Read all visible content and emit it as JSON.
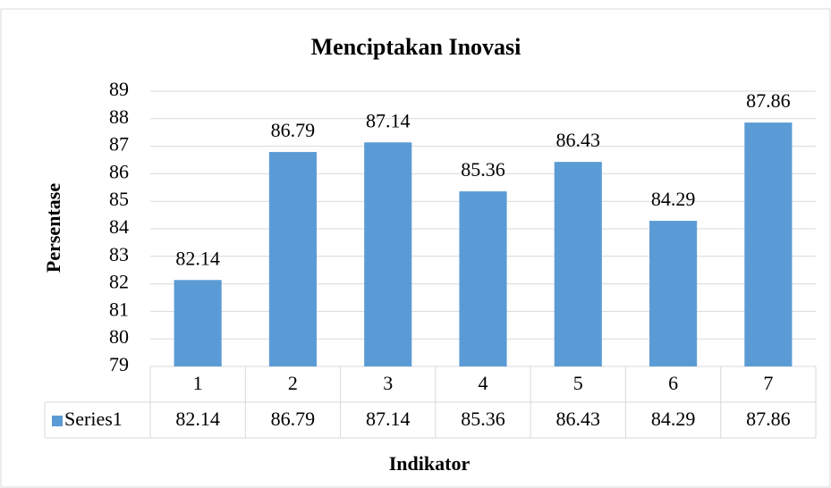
{
  "chart_data": {
    "type": "bar",
    "title": "Menciptakan Inovasi",
    "x_label": "Indikator",
    "y_label": "Persentase",
    "categories": [
      "1",
      "2",
      "3",
      "4",
      "5",
      "6",
      "7"
    ],
    "series": [
      {
        "name": "Series1",
        "color": "#5b9bd5",
        "values": [
          82.14,
          86.79,
          87.14,
          85.36,
          86.43,
          84.29,
          87.86
        ]
      }
    ],
    "ylim": [
      79,
      89
    ],
    "yticks": [
      79,
      80,
      81,
      82,
      83,
      84,
      85,
      86,
      87,
      88,
      89
    ],
    "grid": true,
    "data_table": true
  }
}
